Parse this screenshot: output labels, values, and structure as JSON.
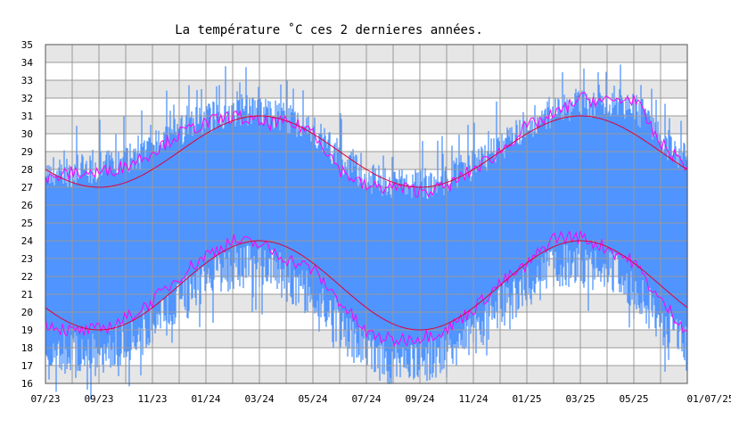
{
  "chart_data": {
    "type": "area",
    "title": "La température ˚C ces 2 dernieres années.",
    "xlabel": "",
    "ylabel": "",
    "ylim": [
      16,
      35
    ],
    "yticks": [
      16,
      17,
      18,
      19,
      20,
      21,
      22,
      23,
      24,
      25,
      26,
      27,
      28,
      29,
      30,
      31,
      32,
      33,
      34,
      35
    ],
    "x_tick_labels": [
      "07/23",
      "09/23",
      "11/23",
      "01/24",
      "03/24",
      "05/24",
      "07/24",
      "09/24",
      "11/24",
      "01/25",
      "03/25",
      "05/25",
      "01/07/25"
    ],
    "grid": true,
    "background": "alternating-gray-bands",
    "legend": "none",
    "colors": {
      "range_fill": "#4f94ff",
      "smoothed_lines": "#ff00ff",
      "seasonal_curves": "#e0003a",
      "grid": "#999999",
      "band": "#e6e6e6"
    },
    "series": [
      {
        "kind": "daily-range",
        "months": [
          "07/23",
          "08/23",
          "09/23",
          "10/23",
          "11/23",
          "12/23",
          "01/24",
          "02/24",
          "03/24",
          "04/24",
          "05/24",
          "06/24",
          "07/24",
          "08/24",
          "09/24",
          "10/24",
          "11/24",
          "12/24",
          "01/25",
          "02/25",
          "03/25",
          "04/25",
          "05/25",
          "06/25",
          "01/07/25"
        ],
        "low": [
          19.5,
          19.0,
          19.0,
          19.6,
          20.5,
          21.8,
          23.0,
          23.8,
          23.8,
          23.2,
          22.4,
          20.5,
          19.0,
          18.4,
          18.6,
          19.0,
          20.2,
          21.6,
          22.6,
          23.8,
          24.0,
          23.6,
          22.8,
          20.8,
          19.2
        ],
        "high": [
          27.6,
          27.6,
          27.8,
          28.2,
          29.0,
          29.8,
          30.6,
          31.0,
          31.0,
          30.6,
          30.0,
          28.4,
          27.2,
          27.0,
          26.8,
          27.2,
          28.0,
          29.0,
          30.2,
          31.0,
          31.4,
          31.6,
          31.2,
          29.4,
          28.2
        ]
      },
      {
        "kind": "smoothed-extremes",
        "months": [
          "07/23",
          "08/23",
          "09/23",
          "10/23",
          "11/23",
          "12/23",
          "01/24",
          "02/24",
          "03/24",
          "04/24",
          "05/24",
          "06/24",
          "07/24",
          "08/24",
          "09/24",
          "10/24",
          "11/24",
          "12/24",
          "01/25",
          "02/25",
          "03/25",
          "04/25",
          "05/25",
          "06/25",
          "01/07/25"
        ],
        "low": [
          19.4,
          18.9,
          19.0,
          19.6,
          20.6,
          22.0,
          23.2,
          24.0,
          23.8,
          23.0,
          22.4,
          20.6,
          18.8,
          18.4,
          18.6,
          19.0,
          20.2,
          21.6,
          22.6,
          24.2,
          24.2,
          23.6,
          22.8,
          20.6,
          19.0
        ],
        "high": [
          27.4,
          27.8,
          27.8,
          28.2,
          29.0,
          30.0,
          30.6,
          31.0,
          30.6,
          30.6,
          30.2,
          28.0,
          27.0,
          27.0,
          26.8,
          27.0,
          28.0,
          29.0,
          30.4,
          31.0,
          32.0,
          31.8,
          32.0,
          29.4,
          28.2
        ]
      },
      {
        "kind": "seasonal-fit",
        "max": {
          "mean": 29.0,
          "amplitude": 2.0,
          "peak": "03/24"
        },
        "min": {
          "mean": 21.5,
          "amplitude": 2.5,
          "peak": "03/24"
        }
      }
    ]
  }
}
